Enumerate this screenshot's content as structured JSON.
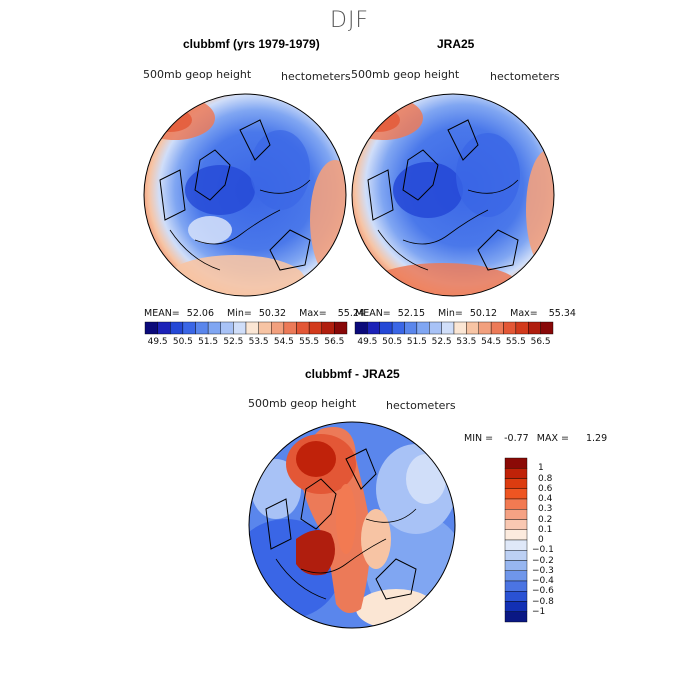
{
  "figure": {
    "title": "DJF",
    "panels": [
      {
        "heading": "clubbmf (yrs 1979-1979)",
        "variable_label": "500mb geop height",
        "units_label": "hectometers",
        "mean_label": "MEAN=",
        "mean_value": "52.06",
        "min_label": "Min=",
        "min_value": "50.32",
        "max_label": "Max=",
        "max_value": "55.24"
      },
      {
        "heading": "JRA25",
        "variable_label": "500mb geop height",
        "units_label": "hectometers",
        "mean_label": "MEAN=",
        "mean_value": "52.15",
        "min_label": "Min=",
        "min_value": "50.12",
        "max_label": "Max=",
        "max_value": "55.34"
      }
    ],
    "diff_panel": {
      "heading": "clubbmf - JRA25",
      "variable_label": "500mb geop height",
      "units_label": "hectometers",
      "min_label": "MIN =",
      "min_value": "-0.77",
      "max_label": "MAX =",
      "max_value": "1.29"
    },
    "colorbar_abs": {
      "ticks": [
        "49.5",
        "50.5",
        "51.5",
        "52.5",
        "53.5",
        "54.5",
        "55.5",
        "56.5"
      ],
      "colors": [
        "#0b0a7a",
        "#1c22b8",
        "#2448d6",
        "#3a66e6",
        "#5a86ec",
        "#80a6f2",
        "#a8c2f6",
        "#d0def9",
        "#fbe6d4",
        "#f7c4a4",
        "#f2a07e",
        "#ec7a58",
        "#e35736",
        "#d23a1c",
        "#b01e0e",
        "#880808"
      ]
    },
    "colorbar_diff": {
      "ticks": [
        "1",
        "0.8",
        "0.6",
        "0.4",
        "0.3",
        "0.2",
        "0.1",
        "0",
        "-0.1",
        "-0.2",
        "-0.3",
        "-0.4",
        "-0.6",
        "-0.8",
        "-1"
      ],
      "colors": [
        "#8b0a06",
        "#c02208",
        "#dc3c10",
        "#ee5522",
        "#f27a52",
        "#f5a284",
        "#f9c8b2",
        "#fcebde",
        "#dfe8f8",
        "#bcd0f4",
        "#97b6f0",
        "#6f96ea",
        "#4b74e2",
        "#2a52d4",
        "#1230b4",
        "#0a1884"
      ]
    }
  }
}
